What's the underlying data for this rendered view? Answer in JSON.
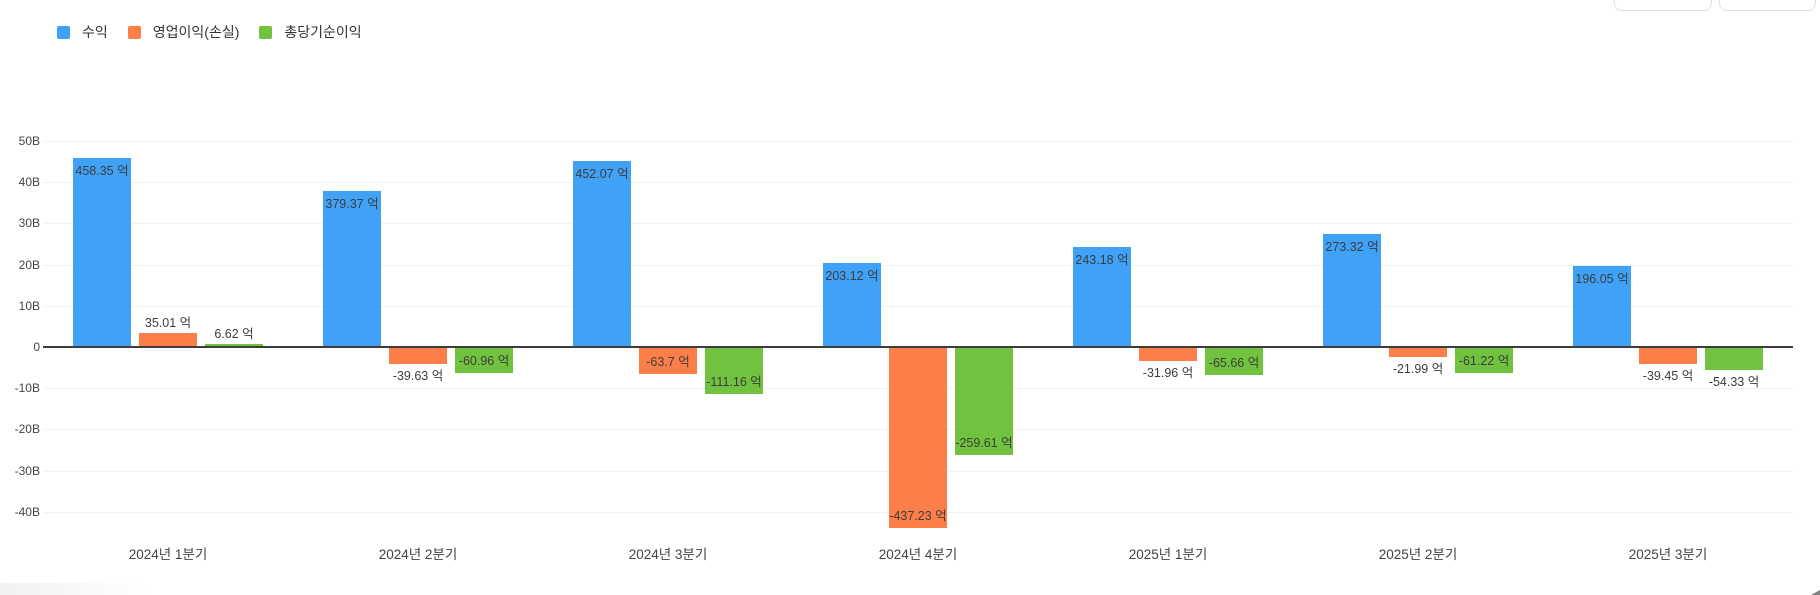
{
  "legend": {
    "items": [
      {
        "label": "수익",
        "color": "#3fa2f7"
      },
      {
        "label": "영업이익(손실)",
        "color": "#fc7e49"
      },
      {
        "label": "총당기순이익",
        "color": "#71c23e"
      }
    ]
  },
  "toolbar": {
    "buttons": [
      {
        "label": ""
      },
      {
        "label": ""
      }
    ]
  },
  "chart_data": {
    "type": "bar",
    "title": "",
    "categories": [
      "2024년 1분기",
      "2024년 2분기",
      "2024년 3분기",
      "2024년 4분기",
      "2025년 1분기",
      "2025년 2분기",
      "2025년 3분기"
    ],
    "value_unit_suffix": " 억",
    "series": [
      {
        "name": "수익",
        "color": "#3fa2f7",
        "values": [
          458.35,
          379.37,
          452.07,
          203.12,
          243.18,
          273.32,
          196.05
        ]
      },
      {
        "name": "영업이익(손실)",
        "color": "#fc7e49",
        "values": [
          35.01,
          -39.63,
          -63.7,
          -437.23,
          -31.96,
          -21.99,
          -39.45
        ]
      },
      {
        "name": "총당기순이익",
        "color": "#71c23e",
        "values": [
          6.62,
          -60.96,
          -111.16,
          -259.61,
          -65.66,
          -61.22,
          -54.33
        ]
      }
    ],
    "y_axis": {
      "ticks": [
        {
          "label": "50B",
          "value": 50
        },
        {
          "label": "40B",
          "value": 40
        },
        {
          "label": "30B",
          "value": 30
        },
        {
          "label": "20B",
          "value": 20
        },
        {
          "label": "10B",
          "value": 10
        },
        {
          "label": "0",
          "value": 0
        },
        {
          "label": "-10B",
          "value": -10
        },
        {
          "label": "-20B",
          "value": -20
        },
        {
          "label": "-30B",
          "value": -30
        },
        {
          "label": "-40B",
          "value": -40
        }
      ],
      "range_B": [
        -45,
        52
      ]
    },
    "grid": true,
    "legend_position": "top-left",
    "bar_label_color": "#3d3d3d"
  }
}
